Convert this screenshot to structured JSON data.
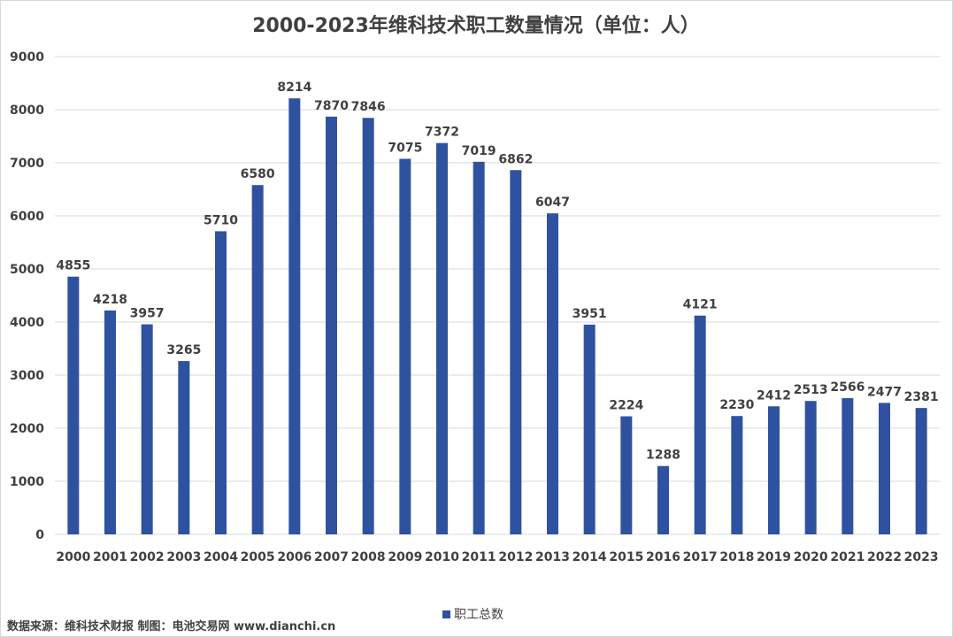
{
  "chart_data": {
    "type": "bar",
    "title": "2000-2023年维科技术职工数量情况（单位：人）",
    "categories": [
      "2000",
      "2001",
      "2002",
      "2003",
      "2004",
      "2005",
      "2006",
      "2007",
      "2008",
      "2009",
      "2010",
      "2011",
      "2012",
      "2013",
      "2014",
      "2015",
      "2016",
      "2017",
      "2018",
      "2019",
      "2020",
      "2021",
      "2022",
      "2023"
    ],
    "series": [
      {
        "name": "职工总数",
        "color": "#2f52a0",
        "values": [
          4855,
          4218,
          3957,
          3265,
          5710,
          6580,
          8214,
          7870,
          7846,
          7075,
          7372,
          7019,
          6862,
          6047,
          3951,
          2224,
          1288,
          4121,
          2230,
          2412,
          2513,
          2566,
          2477,
          2381
        ]
      }
    ],
    "yticks": [
      "0",
      "1000",
      "2000",
      "3000",
      "4000",
      "5000",
      "6000",
      "7000",
      "8000",
      "9000"
    ],
    "ylim": [
      0,
      9000
    ],
    "grid": true,
    "legend_position": "bottom",
    "xlabel": "",
    "ylabel": "",
    "source_note": "数据来源：维科技术财报  制图：电池交易网 www.dianchi.cn"
  }
}
